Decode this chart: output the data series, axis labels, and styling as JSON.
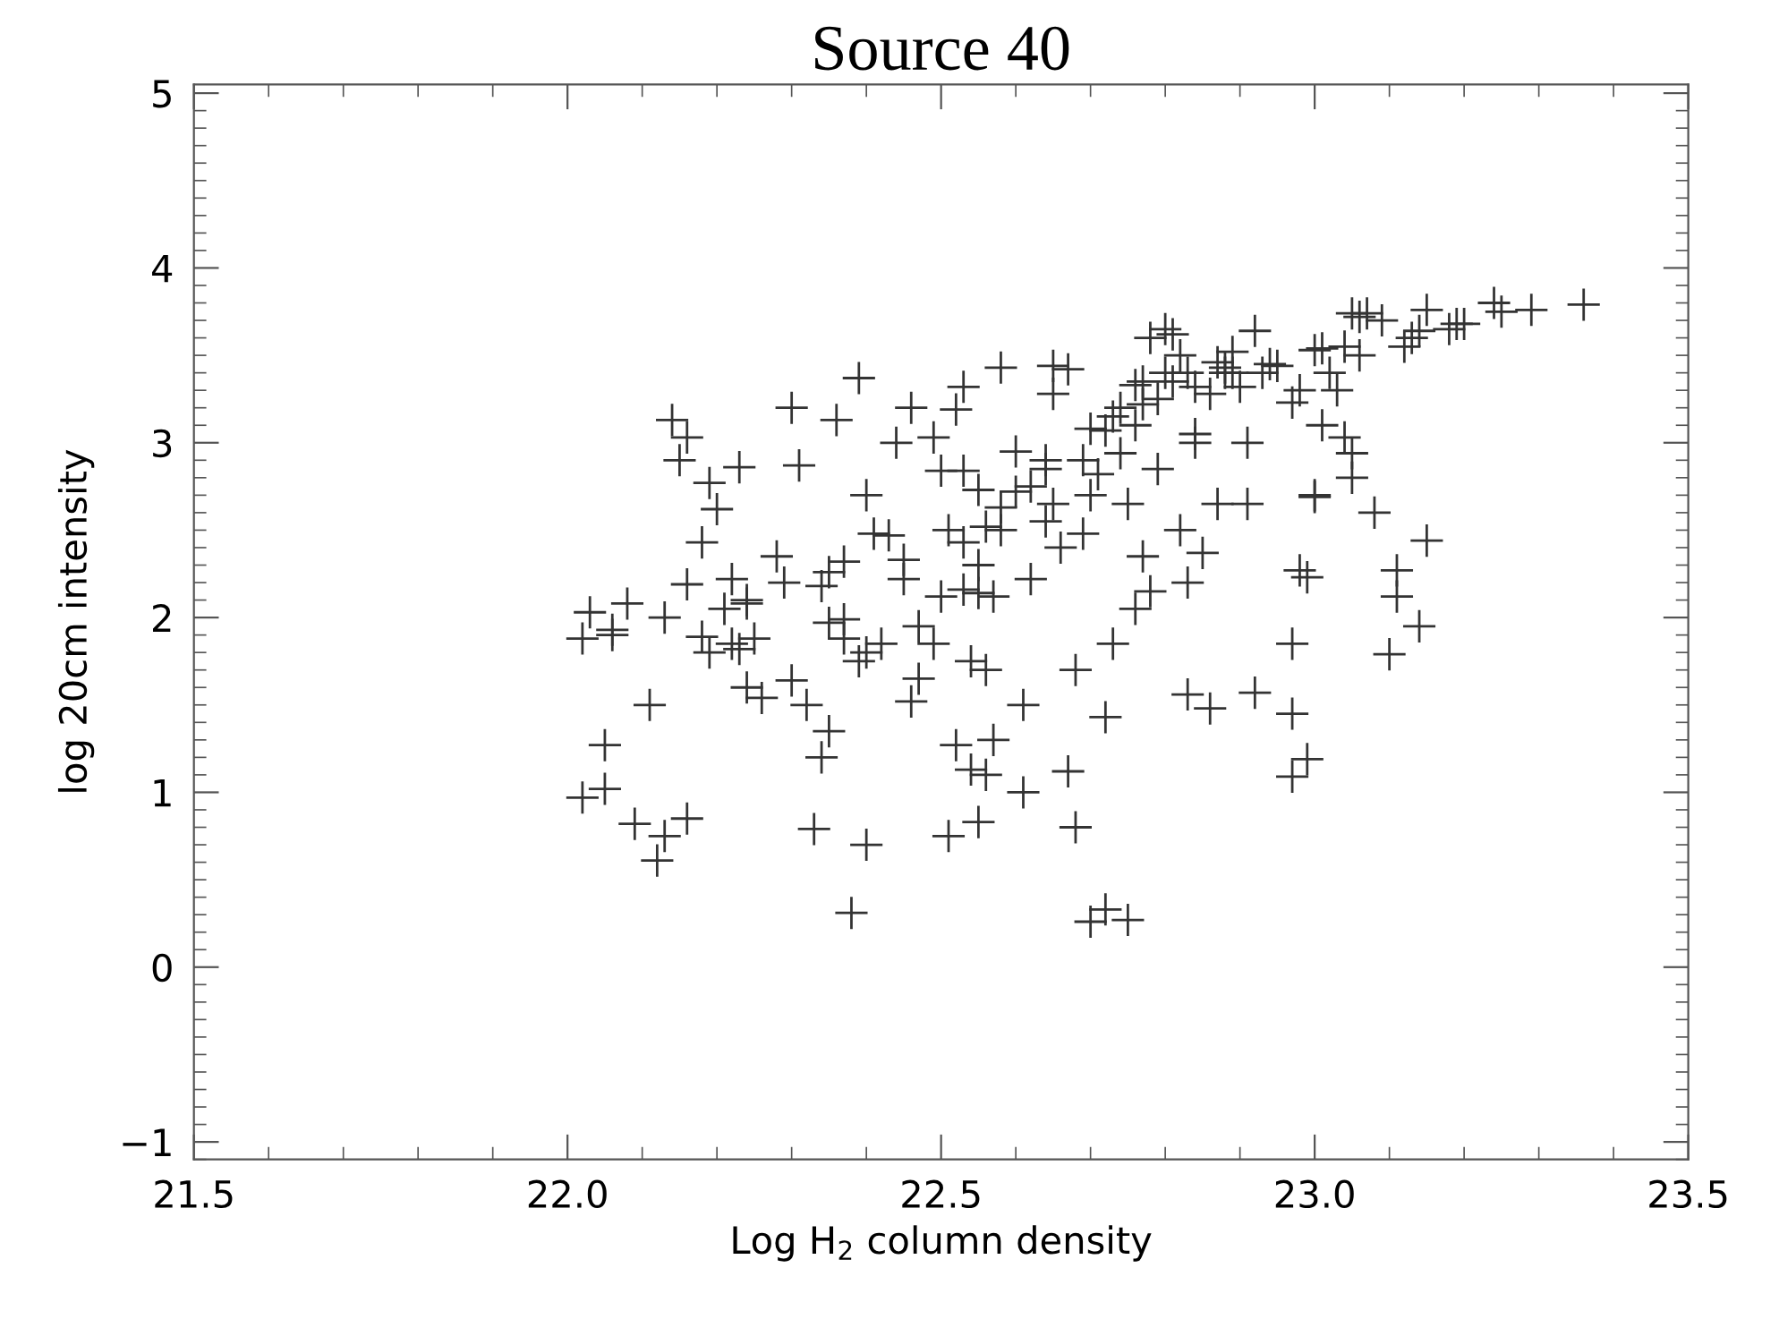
{
  "chart_data": {
    "type": "scatter",
    "title": "Source 40",
    "xlabel": "Log H$_{2}$ column density",
    "ylabel": "log 20cm intensity",
    "xlim": [
      21.5,
      23.5
    ],
    "ylim": [
      -1.1,
      5.05
    ],
    "xticks": [
      21.5,
      {
        "value": 22,
        "label": "22.0"
      },
      22.5,
      {
        "value": 23,
        "label": "23.0"
      },
      23.5
    ],
    "yticks": [
      {
        "value": -1,
        "label": "−1"
      },
      0,
      1,
      2,
      3,
      4,
      5
    ],
    "marker": "cross",
    "grid": false,
    "legend": false,
    "series": [
      {
        "color": "#333333",
        "x": [
          22.02,
          22.02,
          22.03,
          22.05,
          22.05,
          22.06,
          22.06,
          22.08,
          22.09,
          22.11,
          22.12,
          22.13,
          22.13,
          22.14,
          22.15,
          22.16,
          22.16,
          22.16,
          22.18,
          22.18,
          22.19,
          22.19,
          22.2,
          22.21,
          22.22,
          22.22,
          22.23,
          22.23,
          22.24,
          22.24,
          22.24,
          22.25,
          22.26,
          22.28,
          22.29,
          22.3,
          22.3,
          22.31,
          22.32,
          22.33,
          22.34,
          22.34,
          22.35,
          22.35,
          22.35,
          22.36,
          22.37,
          22.37,
          22.37,
          22.38,
          22.39,
          22.39,
          22.4,
          22.4,
          22.4,
          22.41,
          22.42,
          22.43,
          22.44,
          22.45,
          22.45,
          22.46,
          22.46,
          22.47,
          22.47,
          22.49,
          22.49,
          22.5,
          22.5,
          22.51,
          22.51,
          22.52,
          22.52,
          22.53,
          22.53,
          22.53,
          22.53,
          22.54,
          22.54,
          22.55,
          22.55,
          22.55,
          22.55,
          22.56,
          22.56,
          22.56,
          22.57,
          22.57,
          22.58,
          22.58,
          22.58,
          22.6,
          22.6,
          22.61,
          22.61,
          22.62,
          22.62,
          22.64,
          22.64,
          22.64,
          22.65,
          22.65,
          22.65,
          22.66,
          22.67,
          22.67,
          22.68,
          22.68,
          22.69,
          22.69,
          22.7,
          22.7,
          22.7,
          22.71,
          22.72,
          22.72,
          22.72,
          22.73,
          22.73,
          22.74,
          22.74,
          22.75,
          22.75,
          22.76,
          22.76,
          22.76,
          22.77,
          22.77,
          22.77,
          22.78,
          22.78,
          22.79,
          22.79,
          22.8,
          22.8,
          22.81,
          22.81,
          22.82,
          22.82,
          22.83,
          22.83,
          22.83,
          22.84,
          22.84,
          22.84,
          22.85,
          22.86,
          22.86,
          22.87,
          22.87,
          22.88,
          22.88,
          22.89,
          22.89,
          22.9,
          22.91,
          22.91,
          22.92,
          22.92,
          22.93,
          22.94,
          22.95,
          22.97,
          22.97,
          22.97,
          22.97,
          22.98,
          22.98,
          22.99,
          22.99,
          23.0,
          23.0,
          23.0,
          23.01,
          23.01,
          23.02,
          23.03,
          23.04,
          23.04,
          23.05,
          23.05,
          23.05,
          23.06,
          23.06,
          23.07,
          23.08,
          23.09,
          23.1,
          23.11,
          23.11,
          23.12,
          23.13,
          23.14,
          23.14,
          23.15,
          23.15,
          23.18,
          23.19,
          23.2,
          23.24,
          23.25,
          23.29,
          23.36
        ],
        "values": [
          0.97,
          1.88,
          2.03,
          1.02,
          1.27,
          1.9,
          1.93,
          2.08,
          0.82,
          1.5,
          0.61,
          0.75,
          2.0,
          3.13,
          2.9,
          0.85,
          3.03,
          2.19,
          1.89,
          2.43,
          2.77,
          1.8,
          2.62,
          2.05,
          2.22,
          1.85,
          1.82,
          2.86,
          2.1,
          2.08,
          1.6,
          1.88,
          1.54,
          2.35,
          2.2,
          1.64,
          3.2,
          2.87,
          1.5,
          0.79,
          1.2,
          2.18,
          1.97,
          2.26,
          1.35,
          3.13,
          1.99,
          2.32,
          1.88,
          0.31,
          3.37,
          1.75,
          2.7,
          0.7,
          1.8,
          2.48,
          1.85,
          2.47,
          3.0,
          2.33,
          2.22,
          3.2,
          1.52,
          1.95,
          1.65,
          3.03,
          1.85,
          2.84,
          2.12,
          0.75,
          2.5,
          3.19,
          1.27,
          2.43,
          2.16,
          3.32,
          2.84,
          1.75,
          1.13,
          2.3,
          2.73,
          2.14,
          0.83,
          2.52,
          1.7,
          1.1,
          2.12,
          1.3,
          3.43,
          2.5,
          2.63,
          2.95,
          2.72,
          1.0,
          1.5,
          2.75,
          2.22,
          2.55,
          2.9,
          2.85,
          2.65,
          3.44,
          3.28,
          2.4,
          1.12,
          3.42,
          1.7,
          0.8,
          2.48,
          2.9,
          0.26,
          2.7,
          3.08,
          2.82,
          1.43,
          3.07,
          0.33,
          1.85,
          3.15,
          3.2,
          2.94,
          0.27,
          2.65,
          3.1,
          3.33,
          2.05,
          3.35,
          2.35,
          3.22,
          2.15,
          3.6,
          2.85,
          3.25,
          3.65,
          3.4,
          3.62,
          3.35,
          2.5,
          3.5,
          1.56,
          2.2,
          3.4,
          3.32,
          3.05,
          3.0,
          2.37,
          1.48,
          3.28,
          3.46,
          2.65,
          3.43,
          3.4,
          3.52,
          3.4,
          3.32,
          3.0,
          2.65,
          3.64,
          1.57,
          3.4,
          3.45,
          3.44,
          1.85,
          1.45,
          1.09,
          3.23,
          3.3,
          2.27,
          2.23,
          1.19,
          3.53,
          2.7,
          2.69,
          3.1,
          3.54,
          3.4,
          3.3,
          3.55,
          3.03,
          3.74,
          2.94,
          2.8,
          3.72,
          3.5,
          3.74,
          2.6,
          3.7,
          1.79,
          2.27,
          2.12,
          3.55,
          3.6,
          1.95,
          3.64,
          3.76,
          2.44,
          3.65,
          3.68,
          3.68,
          3.8,
          3.75,
          3.76,
          3.79
        ]
      }
    ]
  }
}
